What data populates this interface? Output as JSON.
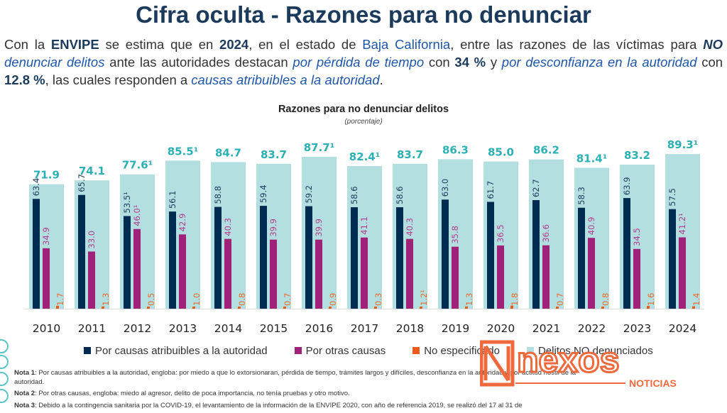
{
  "header": {
    "title": "Cifra oculta - Razones para no denunciar",
    "intro": [
      {
        "t": "Con la ",
        "s": "n"
      },
      {
        "t": "ENVIPE",
        "s": "b"
      },
      {
        "t": " se estima que en ",
        "s": "n"
      },
      {
        "t": "2024",
        "s": "b"
      },
      {
        "t": ", en el estado de ",
        "s": "n"
      },
      {
        "t": "Baja California",
        "s": "bl"
      },
      {
        "t": ", entre las razones de las víctimas para ",
        "s": "n"
      },
      {
        "t": "NO",
        "s": "bi"
      },
      {
        "t": " denunciar delitos",
        "s": "i"
      },
      {
        "t": " ante las autoridades destacan ",
        "s": "n"
      },
      {
        "t": "por pérdida de tiempo",
        "s": "i"
      },
      {
        "t": " con ",
        "s": "n"
      },
      {
        "t": "34 %",
        "s": "b"
      },
      {
        "t": " y ",
        "s": "n"
      },
      {
        "t": "por desconfianza en la autoridad",
        "s": "i"
      },
      {
        "t": " con ",
        "s": "n"
      },
      {
        "t": "12.8 %",
        "s": "b"
      },
      {
        "t": ", las cuales responden a ",
        "s": "n"
      },
      {
        "t": "causas atribuibles a la autoridad",
        "s": "i"
      },
      {
        "t": ".",
        "s": "n"
      }
    ]
  },
  "chart_data": {
    "type": "bar",
    "title": "Razones para no denunciar delitos",
    "subtitle": "(porcentaje)",
    "ylim": [
      0,
      100
    ],
    "categories": [
      "2010",
      "2011",
      "2012",
      "2013",
      "2014",
      "2015",
      "2016",
      "2017",
      "2018",
      "2019",
      "2020",
      "2021",
      "2022",
      "2023",
      "2024"
    ],
    "series": [
      {
        "name": "Delitos NO denunciados",
        "color": "#b3dfe0",
        "label_color": "#2bb0b3",
        "values": [
          71.9,
          74.1,
          77.6,
          85.5,
          84.7,
          83.7,
          87.7,
          82.4,
          83.7,
          86.3,
          85.0,
          86.2,
          81.4,
          83.2,
          89.3
        ],
        "labels": [
          "71.9",
          "74.1",
          "77.6¹",
          "85.5¹",
          "84.7",
          "83.7",
          "87.7¹",
          "82.4¹",
          "83.7",
          "86.3",
          "85.0",
          "86.2",
          "81.4¹",
          "83.2",
          "89.3¹"
        ]
      },
      {
        "name": "Por causas atribuibles a la autoridad",
        "color": "#002b50",
        "label_color": "#1b3a5c",
        "values": [
          63.4,
          65.7,
          53.5,
          56.1,
          58.8,
          59.4,
          59.2,
          58.6,
          58.6,
          63.0,
          61.7,
          62.7,
          58.3,
          63.9,
          57.5
        ],
        "labels": [
          "63.4",
          "65.7",
          "53.5¹",
          "56.1",
          "58.8",
          "59.4",
          "59.2",
          "58.6",
          "58.6",
          "63.0",
          "61.7",
          "62.7",
          "58.3",
          "63.9",
          "57.5"
        ]
      },
      {
        "name": "Por otras causas",
        "color": "#9e2277",
        "label_color": "#b43a8f",
        "values": [
          34.9,
          33.0,
          46.0,
          42.9,
          40.3,
          39.9,
          39.9,
          41.1,
          40.3,
          35.8,
          36.5,
          36.6,
          40.9,
          34.5,
          41.2
        ],
        "labels": [
          "34.9",
          "33.0",
          "46.0¹",
          "42.9",
          "40.3",
          "39.9",
          "39.9",
          "41.1",
          "40.3",
          "35.8",
          "36.5",
          "36.6",
          "40.9",
          "34.5",
          "41.2¹"
        ]
      },
      {
        "name": "No especificado",
        "color": "#ee5a1c",
        "label_color": "#ee6a2c",
        "values": [
          1.7,
          1.3,
          0.5,
          1.0,
          0.8,
          0.7,
          0.9,
          0.3,
          1.2,
          1.3,
          1.8,
          0.7,
          0.8,
          1.6,
          1.4
        ],
        "labels": [
          "1.7",
          "1.3",
          "0.5",
          "1.0",
          "0.8",
          "0.7",
          "0.9",
          "0.3",
          "1.2¹",
          "1.3",
          "1.8",
          "0.7",
          "0.8",
          "1.6",
          "1.4"
        ]
      }
    ],
    "legend": [
      "Por causas atribuibles a la autoridad",
      "Por otras causas",
      "No especificado",
      "Delitos NO denunciados"
    ]
  },
  "notes": [
    {
      "label": "Nota 1",
      "text": ": Por causas atribuibles a la autoridad, engloba: por miedo a que lo extorsionaran, pérdida de tiempo, trámites largos y difíciles, desconfianza en la autoridad y por actitud hostil de la autoridad."
    },
    {
      "label": "Nota 2",
      "text": ": Por otras causas, engloba: miedo al agresor, delito de poca importancia, no tenía pruebas y otro motivo."
    },
    {
      "label": "Nota 3",
      "text": ": Debido a la contingencia sanitaria por la COVID-19, el levantamiento de la información de la ENVIPE 2020, con año de referencia 2019, se realizó del 17 al 31 de"
    }
  ],
  "watermark": {
    "brand": "nexos",
    "sub": "NOTICIAS",
    "color": "#ee6a3c"
  }
}
